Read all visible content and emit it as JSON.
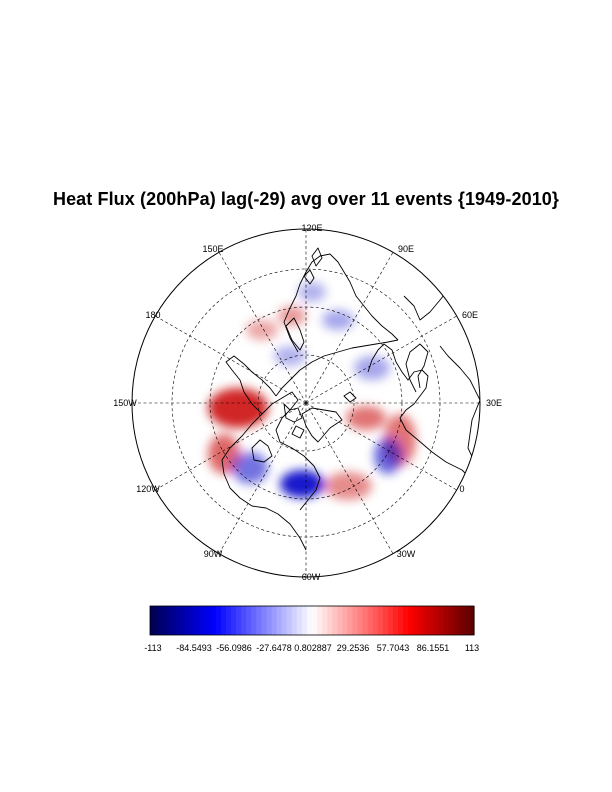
{
  "title": "Heat Flux (200hPa) lag(-29) avg over 11 events {1949-2010}",
  "map": {
    "projection": "north polar stereographic",
    "longitude_labels": [
      "120E",
      "90E",
      "60E",
      "30E",
      "0",
      "30W",
      "60W",
      "90W",
      "120W",
      "150W",
      "180",
      "150E"
    ],
    "graticule": "dashed",
    "palette": {
      "negative": "#0000c8",
      "zero": "#ffffff",
      "positive": "#c80000",
      "coast": "#000000"
    },
    "anomalies": [
      {
        "sign": "positive",
        "strength": 0.85,
        "where": "Alaska / North Pacific"
      },
      {
        "sign": "positive",
        "strength": 0.6,
        "where": "Gulf of Alaska coast"
      },
      {
        "sign": "negative",
        "strength": 0.55,
        "where": "western Canada"
      },
      {
        "sign": "negative",
        "strength": 0.9,
        "where": "Hudson Bay / Labrador"
      },
      {
        "sign": "positive",
        "strength": 0.45,
        "where": "eastern Canada"
      },
      {
        "sign": "positive",
        "strength": 0.55,
        "where": "North Atlantic"
      },
      {
        "sign": "negative",
        "strength": 0.6,
        "where": "Greenland Sea"
      },
      {
        "sign": "positive",
        "strength": 0.55,
        "where": "Scandinavia"
      },
      {
        "sign": "negative",
        "strength": 0.35,
        "where": "western Russia"
      },
      {
        "sign": "negative",
        "strength": 0.35,
        "where": "central Siberia"
      },
      {
        "sign": "positive",
        "strength": 0.4,
        "where": "eastern Siberia"
      },
      {
        "sign": "negative",
        "strength": 0.3,
        "where": "Sea of Okhotsk"
      },
      {
        "sign": "positive",
        "strength": 0.35,
        "where": "Bering Sea"
      },
      {
        "sign": "negative",
        "strength": 0.3,
        "where": "East Asia"
      }
    ]
  },
  "colorbar": {
    "min": -113,
    "max": 113,
    "labels": [
      "-113",
      "-84.5493",
      "-56.0986",
      "-27.6478",
      "0.802887",
      "29.2536",
      "57.7043",
      "86.1551",
      "113"
    ]
  }
}
